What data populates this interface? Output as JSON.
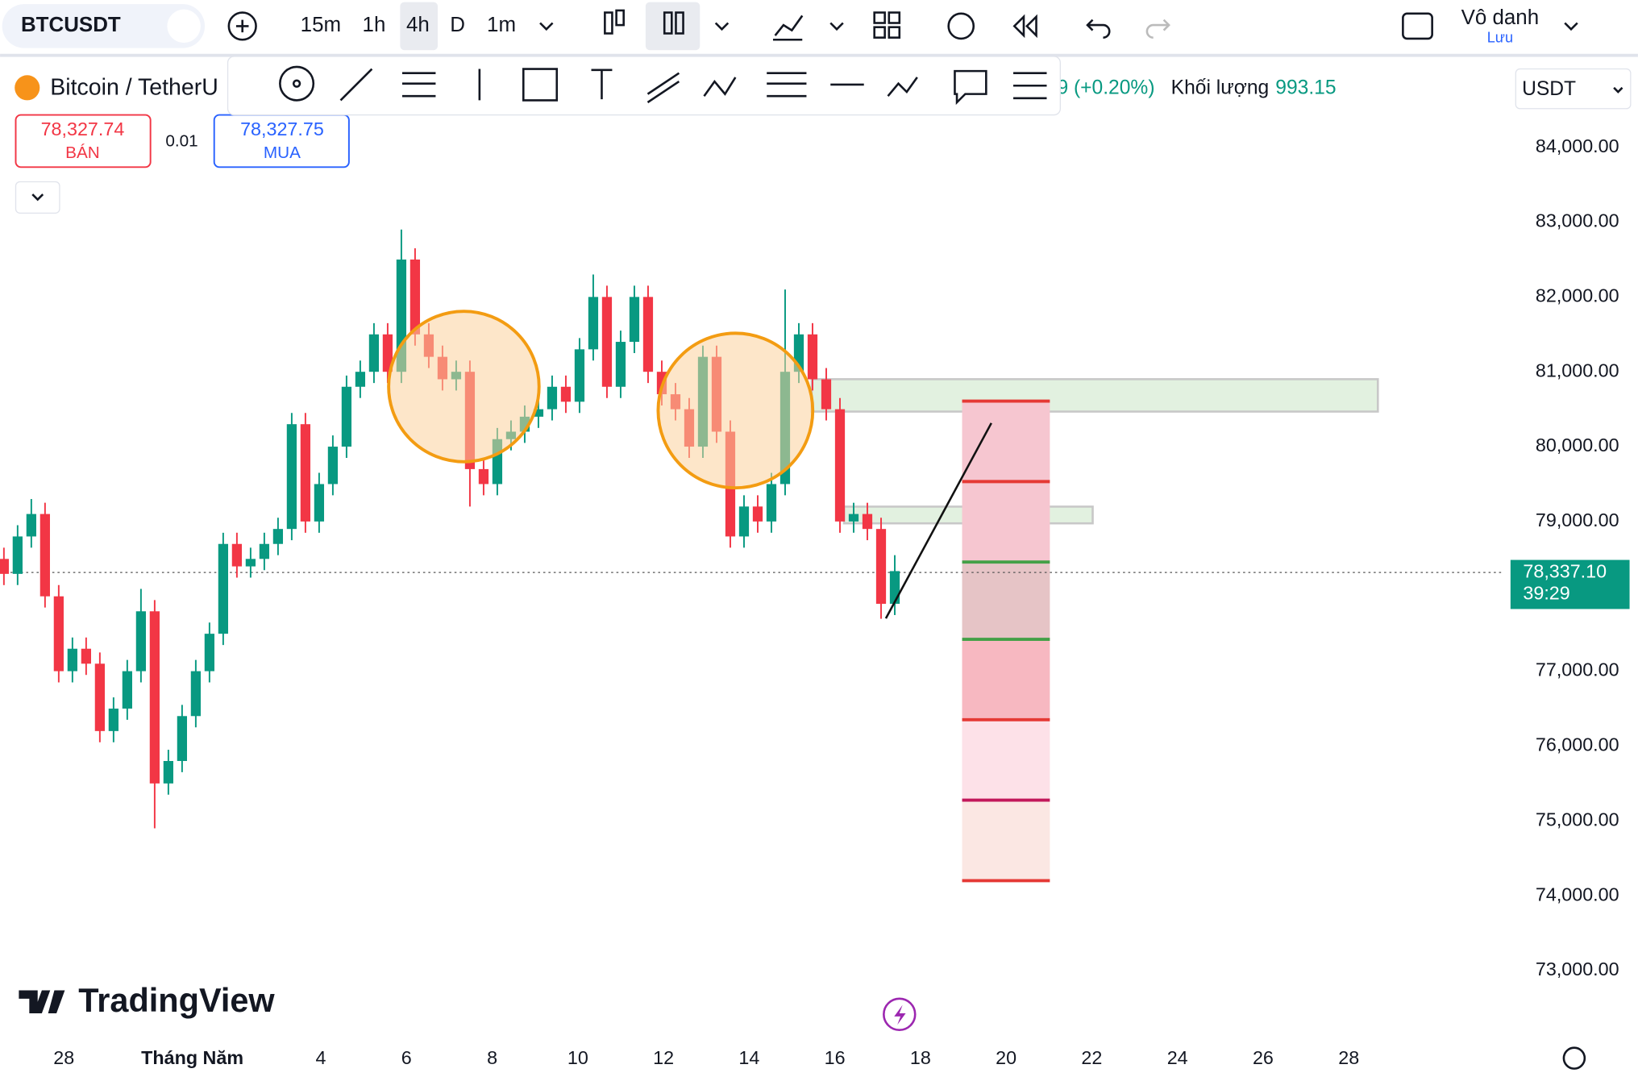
{
  "ui": {
    "symbol": "BTCUSDT",
    "intervals": [
      "15m",
      "1h",
      "4h",
      "D",
      "1m"
    ],
    "layout_name": "Vô danh",
    "save": "Lưu",
    "pair": "Bitcoin / TetherU",
    "change": "9 (+0.20%)",
    "volume_label": "Khối lượng",
    "volume": "993.15",
    "currency": "USDT",
    "sell_price": "78,327.74",
    "sell": "BÁN",
    "spread": "0.01",
    "buy_price": "78,327.75",
    "buy": "MUA",
    "last_price": "78,337.10",
    "countdown": "39:29",
    "brand": "TradingView"
  },
  "chart_data": {
    "type": "candlestick",
    "up_color": "#089981",
    "down_color": "#f23645",
    "grid": false,
    "xlim": [
      -1.49,
      33.63
    ],
    "xticks": [
      {
        "value": 0,
        "label": "28"
      },
      {
        "value": 3,
        "label": "Tháng Năm"
      },
      {
        "value": 6,
        "label": "4"
      },
      {
        "value": 8,
        "label": "6"
      },
      {
        "value": 10,
        "label": "8"
      },
      {
        "value": 12,
        "label": "10"
      },
      {
        "value": 14,
        "label": "12"
      },
      {
        "value": 16,
        "label": "14"
      },
      {
        "value": 18,
        "label": "16"
      },
      {
        "value": 20,
        "label": "18"
      },
      {
        "value": 22,
        "label": "20"
      },
      {
        "value": 24,
        "label": "22"
      },
      {
        "value": 26,
        "label": "24"
      },
      {
        "value": 28,
        "label": "26"
      },
      {
        "value": 30,
        "label": "28"
      }
    ],
    "ylim": [
      72150,
      85130
    ],
    "yticks": [
      {
        "value": 84000,
        "label": "84,000.00"
      },
      {
        "value": 83000,
        "label": "83,000.00"
      },
      {
        "value": 82000,
        "label": "82,000.00"
      },
      {
        "value": 81000,
        "label": "81,000.00"
      },
      {
        "value": 80000,
        "label": "80,000.00"
      },
      {
        "value": 79000,
        "label": "79,000.00"
      },
      {
        "value": 77000,
        "label": "77,000.00"
      },
      {
        "value": 76000,
        "label": "76,000.00"
      },
      {
        "value": 75000,
        "label": "75,000.00"
      },
      {
        "value": 74000,
        "label": "74,000.00"
      },
      {
        "value": 73000,
        "label": "73,000.00"
      }
    ],
    "x": [
      -1.4,
      -1.08,
      -0.76,
      -0.44,
      -0.12,
      0.2,
      0.52,
      0.84,
      1.16,
      1.48,
      1.8,
      2.12,
      2.44,
      2.76,
      3.08,
      3.4,
      3.72,
      4.04,
      4.36,
      4.68,
      5.0,
      5.32,
      5.64,
      5.96,
      6.28,
      6.6,
      6.92,
      7.24,
      7.56,
      7.88,
      8.2,
      8.52,
      8.84,
      9.16,
      9.48,
      9.8,
      10.12,
      10.44,
      10.76,
      11.08,
      11.4,
      11.72,
      12.04,
      12.36,
      12.68,
      13.0,
      13.32,
      13.64,
      13.96,
      14.28,
      14.6,
      14.92,
      15.24,
      15.56,
      15.88,
      16.2,
      16.52,
      16.84,
      17.16,
      17.48,
      17.8,
      18.12,
      18.44,
      18.76,
      19.08,
      19.4
    ],
    "ohlc": [
      [
        78500,
        78650,
        78150,
        78300
      ],
      [
        78300,
        78950,
        78150,
        78800
      ],
      [
        78800,
        79300,
        78650,
        79100
      ],
      [
        79100,
        79250,
        77850,
        78000
      ],
      [
        78000,
        78150,
        76850,
        77000
      ],
      [
        77000,
        77450,
        76850,
        77300
      ],
      [
        77300,
        77450,
        76950,
        77100
      ],
      [
        77100,
        77250,
        76050,
        76200
      ],
      [
        76200,
        76650,
        76050,
        76500
      ],
      [
        76500,
        77150,
        76350,
        77000
      ],
      [
        77000,
        78100,
        76850,
        77800
      ],
      [
        77800,
        77950,
        74900,
        75500
      ],
      [
        75500,
        75950,
        75350,
        75800
      ],
      [
        75800,
        76550,
        75650,
        76400
      ],
      [
        76400,
        77150,
        76250,
        77000
      ],
      [
        77000,
        77650,
        76850,
        77500
      ],
      [
        77500,
        78850,
        77350,
        78700
      ],
      [
        78700,
        78850,
        78250,
        78400
      ],
      [
        78400,
        78650,
        78250,
        78500
      ],
      [
        78500,
        78850,
        78350,
        78700
      ],
      [
        78700,
        79050,
        78550,
        78900
      ],
      [
        78900,
        80450,
        78750,
        80300
      ],
      [
        80300,
        80450,
        78850,
        79000
      ],
      [
        79000,
        79650,
        78850,
        79500
      ],
      [
        79500,
        80150,
        79350,
        80000
      ],
      [
        80000,
        80950,
        79850,
        80800
      ],
      [
        80800,
        81150,
        80650,
        81000
      ],
      [
        81000,
        81650,
        80850,
        81500
      ],
      [
        81500,
        81650,
        80850,
        81000
      ],
      [
        81000,
        82900,
        80850,
        82500
      ],
      [
        82500,
        82650,
        81350,
        81500
      ],
      [
        81500,
        81650,
        81050,
        81200
      ],
      [
        81200,
        81350,
        80750,
        80900
      ],
      [
        80900,
        81150,
        80750,
        81000
      ],
      [
        81000,
        81150,
        79200,
        79700
      ],
      [
        79700,
        79850,
        79350,
        79500
      ],
      [
        79500,
        80250,
        79350,
        80100
      ],
      [
        80100,
        80350,
        79950,
        80200
      ],
      [
        80200,
        80550,
        80050,
        80400
      ],
      [
        80400,
        80650,
        80250,
        80500
      ],
      [
        80500,
        80950,
        80350,
        80800
      ],
      [
        80800,
        80950,
        80450,
        80600
      ],
      [
        80600,
        81450,
        80450,
        81300
      ],
      [
        81300,
        82300,
        81150,
        82000
      ],
      [
        82000,
        82150,
        80650,
        80800
      ],
      [
        80800,
        81550,
        80650,
        81400
      ],
      [
        81400,
        82150,
        81250,
        82000
      ],
      [
        82000,
        82150,
        80850,
        81000
      ],
      [
        81000,
        81150,
        80550,
        80700
      ],
      [
        80700,
        80850,
        80350,
        80500
      ],
      [
        80500,
        80650,
        79850,
        80000
      ],
      [
        80000,
        81350,
        79850,
        81200
      ],
      [
        81200,
        81350,
        80050,
        80200
      ],
      [
        80200,
        80350,
        78650,
        78800
      ],
      [
        78800,
        79350,
        78650,
        79200
      ],
      [
        79200,
        79350,
        78850,
        79000
      ],
      [
        79000,
        79650,
        78850,
        79500
      ],
      [
        79500,
        82100,
        79350,
        81000
      ],
      [
        81000,
        81650,
        80850,
        81500
      ],
      [
        81500,
        81650,
        80750,
        80900
      ],
      [
        80900,
        81050,
        80350,
        80500
      ],
      [
        80500,
        80650,
        78850,
        79000
      ],
      [
        79000,
        79250,
        78850,
        79100
      ],
      [
        79100,
        79250,
        78750,
        78900
      ],
      [
        78900,
        79050,
        77700,
        77900
      ],
      [
        77900,
        78550,
        77750,
        78337.1
      ]
    ]
  }
}
